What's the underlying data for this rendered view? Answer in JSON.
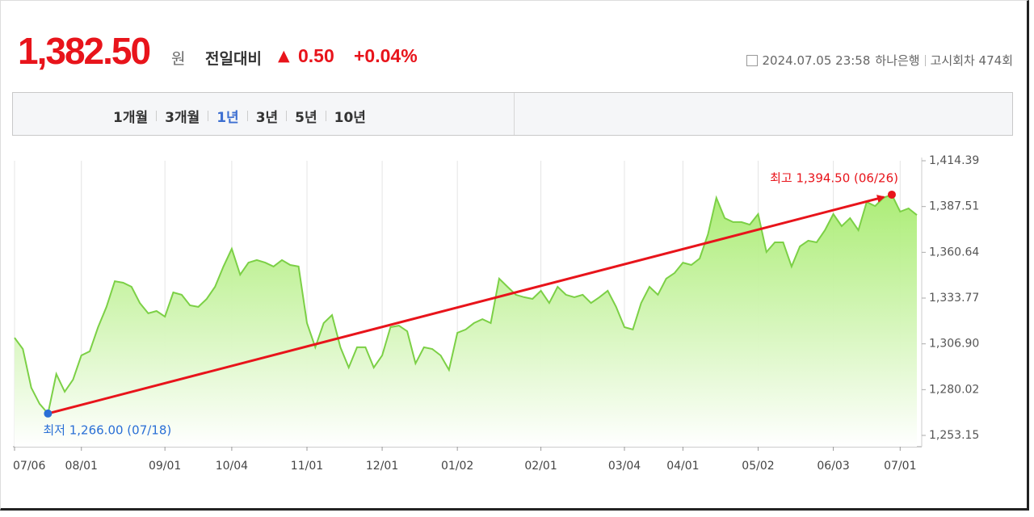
{
  "header": {
    "price": "1,382.50",
    "unit": "원",
    "change_label": "전일대비",
    "change_arrow": "▲",
    "change": "0.50",
    "change_pct": "+0.04%",
    "datetime": "2024.07.05 23:58",
    "bank": "하나은행",
    "round": "고시회차 474회"
  },
  "tabs": [
    "1개월",
    "3개월",
    "1년",
    "3년",
    "5년",
    "10년"
  ],
  "selected_tab": 2,
  "chart_data": {
    "type": "area",
    "categories": [
      "07/06",
      null,
      null,
      null,
      null,
      null,
      null,
      null,
      "08/01",
      null,
      null,
      null,
      null,
      null,
      null,
      null,
      null,
      null,
      "09/01",
      null,
      null,
      null,
      null,
      null,
      null,
      null,
      "10/04",
      null,
      null,
      null,
      null,
      null,
      null,
      null,
      null,
      "11/01",
      null,
      null,
      null,
      null,
      null,
      null,
      null,
      null,
      "12/01",
      null,
      null,
      null,
      null,
      null,
      null,
      null,
      null,
      "01/02",
      null,
      null,
      null,
      null,
      null,
      null,
      null,
      null,
      null,
      "02/01",
      null,
      null,
      null,
      null,
      null,
      null,
      null,
      null,
      null,
      "03/04",
      null,
      null,
      null,
      null,
      null,
      null,
      "04/01",
      null,
      null,
      null,
      null,
      null,
      null,
      null,
      null,
      "05/02",
      null,
      null,
      null,
      null,
      null,
      null,
      null,
      null,
      "06/03",
      null,
      null,
      null,
      null,
      null,
      null,
      null,
      "07/01",
      null,
      null
    ],
    "series": [
      {
        "color": "#7cd046",
        "values": [
          1310.5,
          1303.9,
          1281.2,
          1271.7,
          1266.0,
          1289.2,
          1278.8,
          1285.9,
          1300.1,
          1302.5,
          1316.7,
          1328.6,
          1343.7,
          1342.8,
          1340.4,
          1330.9,
          1324.8,
          1326.2,
          1322.9,
          1337.1,
          1335.7,
          1329.5,
          1328.6,
          1333.3,
          1340.4,
          1352.3,
          1362.7,
          1347.5,
          1354.6,
          1356.1,
          1354.6,
          1352.3,
          1356.1,
          1353.2,
          1352.3,
          1319.1,
          1304.9,
          1319.1,
          1323.8,
          1304.9,
          1293.0,
          1304.9,
          1304.9,
          1293.0,
          1300.1,
          1316.7,
          1317.6,
          1314.3,
          1295.4,
          1304.9,
          1303.9,
          1300.1,
          1291.6,
          1313.4,
          1315.3,
          1319.1,
          1321.4,
          1319.1,
          1345.2,
          1340.4,
          1335.7,
          1334.3,
          1333.3,
          1338.1,
          1330.9,
          1340.4,
          1335.7,
          1334.3,
          1335.7,
          1330.9,
          1334.3,
          1338.1,
          1328.6,
          1316.7,
          1315.3,
          1330.9,
          1340.4,
          1335.7,
          1345.2,
          1348.5,
          1354.6,
          1353.2,
          1357.0,
          1371.2,
          1392.6,
          1380.7,
          1378.4,
          1378.4,
          1376.9,
          1383.1,
          1360.8,
          1366.5,
          1366.5,
          1352.3,
          1364.1,
          1367.5,
          1366.5,
          1373.6,
          1383.1,
          1376.0,
          1380.7,
          1373.6,
          1390.2,
          1387.8,
          1392.6,
          1394.5,
          1384.5,
          1386.4,
          1382.5
        ]
      }
    ],
    "ylim": [
      1246.51,
      1414.39
    ],
    "yticks": [
      {
        "value": 1253.15,
        "label": "1,253.15"
      },
      {
        "value": 1280.02,
        "label": "1,280.02"
      },
      {
        "value": 1306.9,
        "label": "1,306.90"
      },
      {
        "value": 1333.77,
        "label": "1,333.77"
      },
      {
        "value": 1360.64,
        "label": "1,360.64"
      },
      {
        "value": 1387.51,
        "label": "1,387.51"
      },
      {
        "value": 1414.39,
        "label": "1,414.39"
      }
    ],
    "grid": true,
    "annotations": {
      "low": "최저 1,266.00 (07/18)",
      "high": "최고 1,394.50 (06/26)"
    },
    "low_color": "#2a6fd6",
    "high_color": "#e8141b",
    "arrow_color": "#e8141b"
  }
}
